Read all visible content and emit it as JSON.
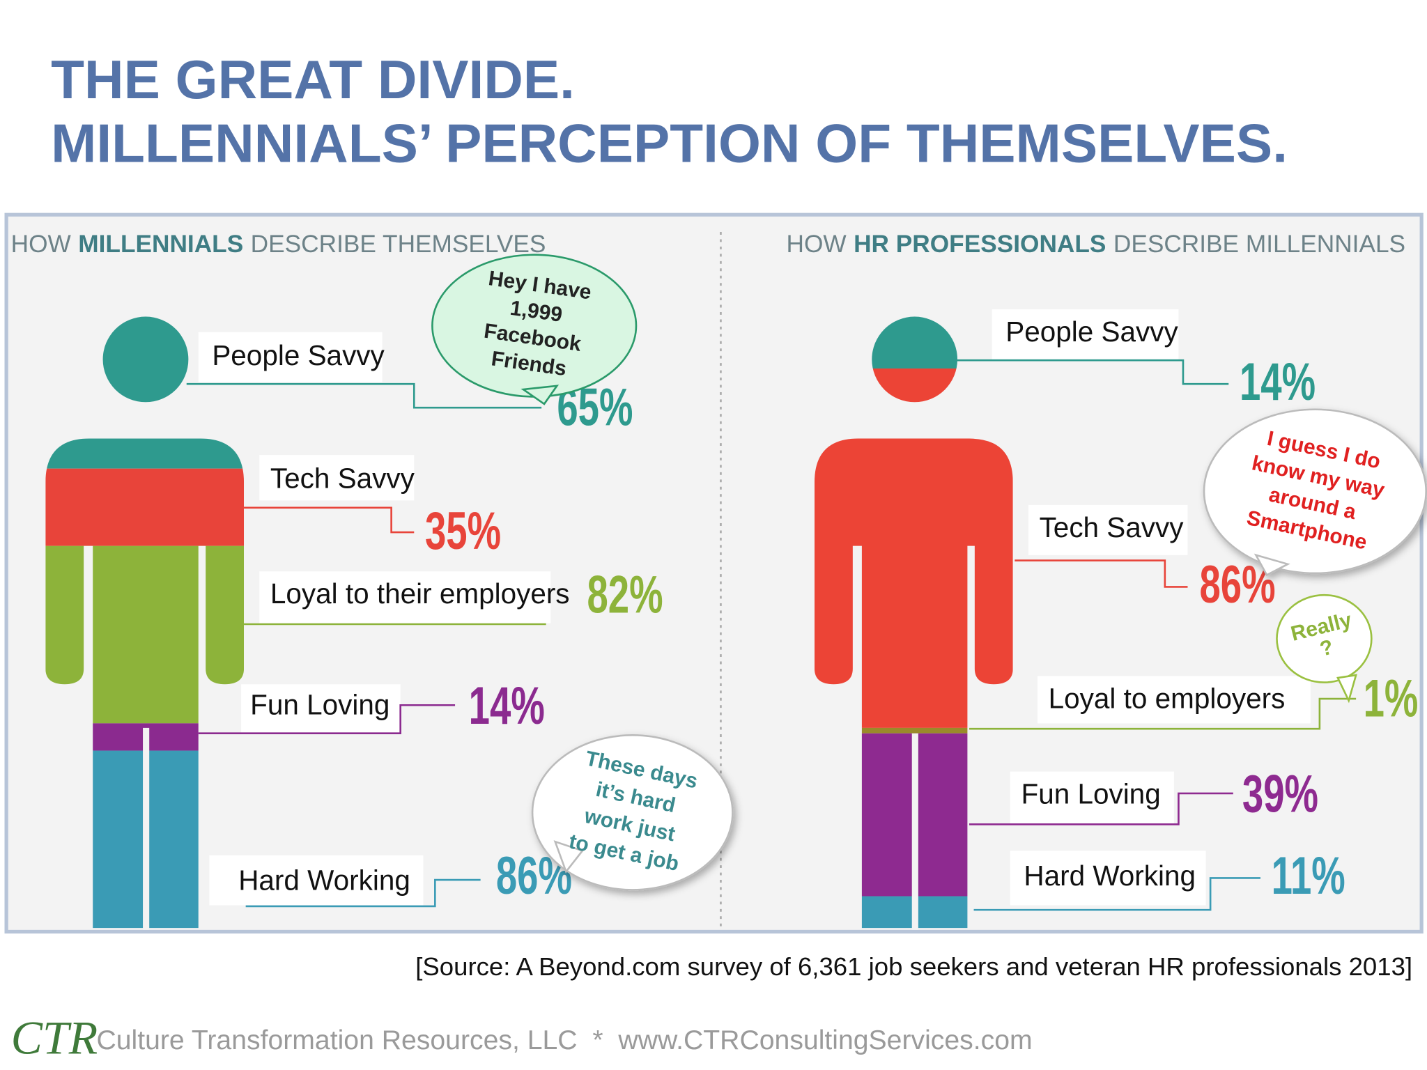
{
  "title": {
    "line1": "THE GREAT DIVIDE.",
    "line2": "MILLENNIALS’ PERCEPTION OF THEMSELVES."
  },
  "panels": [
    {
      "header": [
        "HOW",
        "MILLENNIALS",
        "DESCRIBE THEMSELVES"
      ],
      "items": [
        {
          "label": "People Savvy",
          "value": "65%"
        },
        {
          "label": "Tech Savvy",
          "value": "35%"
        },
        {
          "label": "Loyal to their employers",
          "value": "82%"
        },
        {
          "label": "Fun Loving",
          "value": "14%"
        },
        {
          "label": "Hard Working",
          "value": "86%"
        }
      ],
      "bubbles": [
        [
          "Hey I have",
          "1,999",
          "Facebook",
          "Friends"
        ],
        [
          "These days",
          "it’s hard",
          "work just",
          "to get a job"
        ]
      ]
    },
    {
      "header": [
        "HOW",
        "HR PROFESSIONALS",
        "DESCRIBE MILLENNIALS"
      ],
      "items": [
        {
          "label": "People Savvy",
          "value": "14%"
        },
        {
          "label": "Tech Savvy",
          "value": "86%"
        },
        {
          "label": "Loyal to employers",
          "value": "1%"
        },
        {
          "label": "Fun Loving",
          "value": "39%"
        },
        {
          "label": "Hard Working",
          "value": "11%"
        }
      ],
      "bubbles": [
        [
          "I guess I do",
          "know my way",
          "around a",
          "Smartphone"
        ],
        [
          "Really",
          "?"
        ]
      ]
    }
  ],
  "source": "[Source: A Beyond.com survey of 6,361 job seekers and veteran HR professionals 2013]",
  "footer": {
    "logo": "CTR",
    "text": "Culture Transformation Resources, LLC  *  www.CTRConsultingServices.com"
  }
}
